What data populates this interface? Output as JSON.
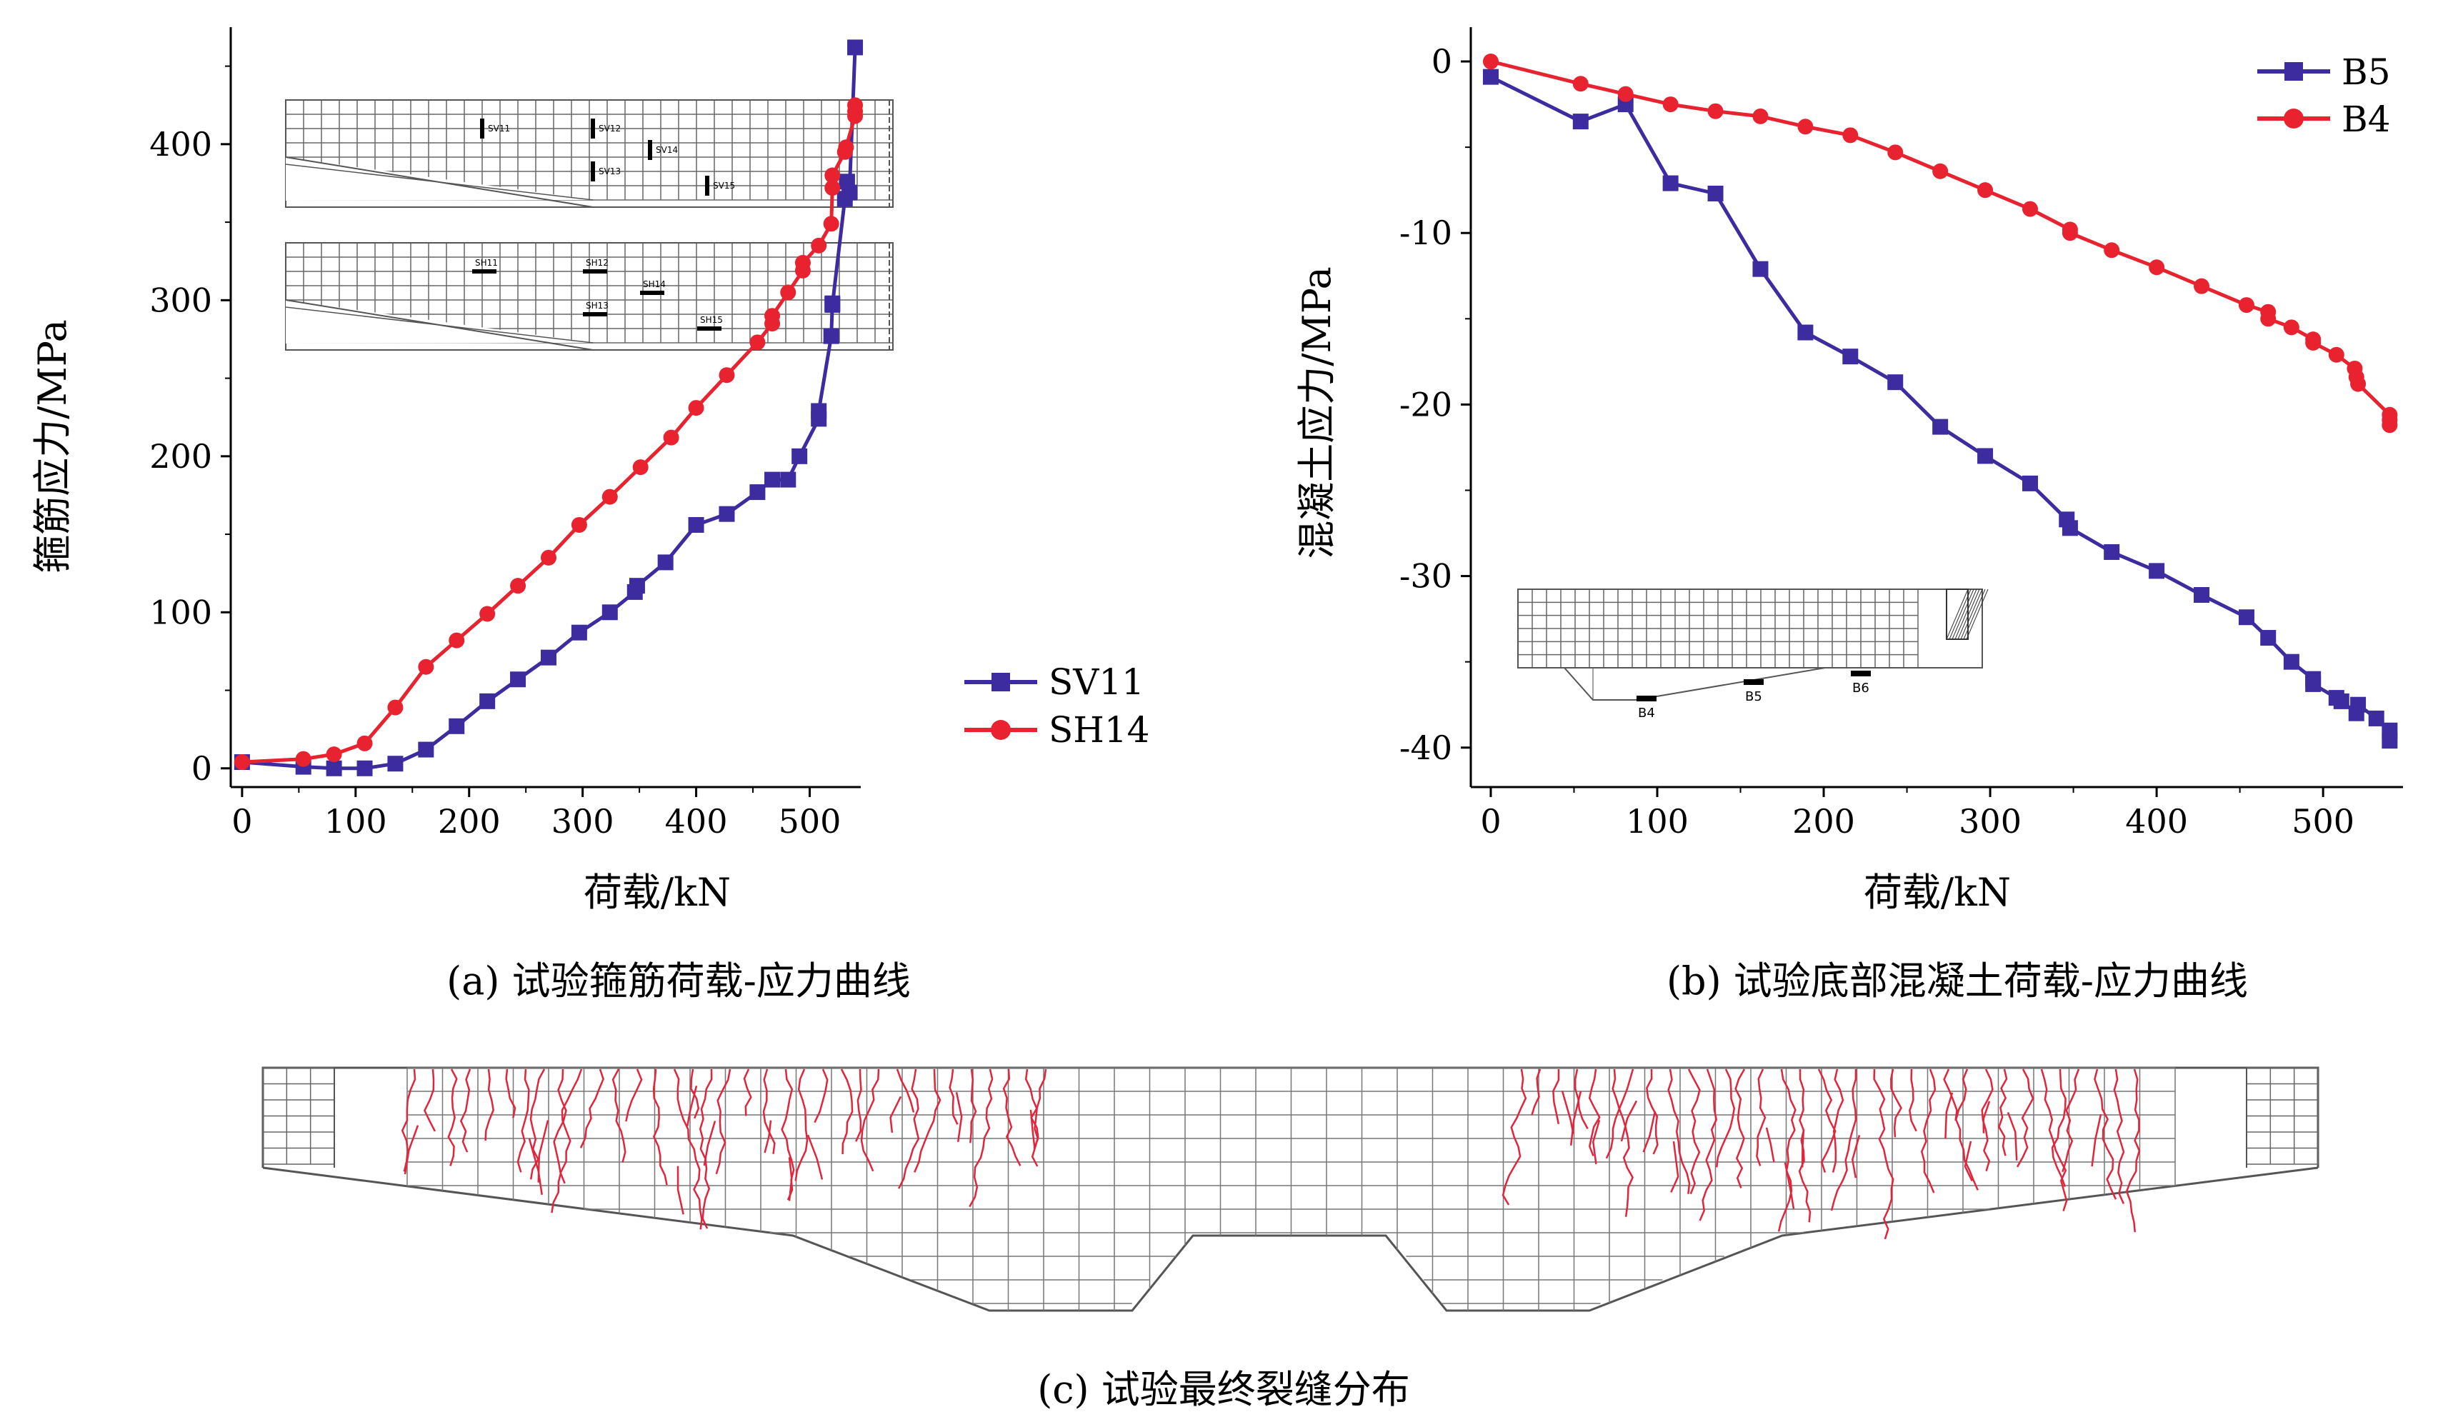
{
  "colors": {
    "series_purple": "#3d2ba0",
    "series_red": "#e8232f",
    "crack_red": "#e0253c",
    "mesh_gray": "#777777"
  },
  "captions": {
    "a": "(a) 试验箍筋荷载-应力曲线",
    "b": "(b) 试验底部混凝土荷载-应力曲线",
    "c": "(c) 试验最终裂缝分布"
  },
  "insets": {
    "sv_labels": [
      "SV11",
      "SV12",
      "SV13",
      "SV14",
      "SV15"
    ],
    "sh_labels": [
      "SH11",
      "SH12",
      "SH13",
      "SH14",
      "SH15"
    ],
    "b_labels": [
      "B4",
      "B5",
      "B6"
    ]
  },
  "chart_data": [
    {
      "type": "line",
      "xlabel": "荷载/kN",
      "ylabel": "箍筋应力/MPa",
      "xlim": [
        -10,
        545
      ],
      "ylim": [
        -12,
        475
      ],
      "xticks": [
        0,
        100,
        200,
        300,
        400,
        500
      ],
      "yticks": [
        0,
        100,
        200,
        300,
        400
      ],
      "legend_position": "bottom-right",
      "series": [
        {
          "name": "SV11",
          "color": "#3d2ba0",
          "marker": "square",
          "x": [
            0,
            54,
            81,
            108,
            135,
            162,
            189,
            216,
            243,
            270,
            297,
            324,
            346,
            348,
            373,
            400,
            427,
            454,
            467,
            481,
            491,
            508,
            508,
            519,
            520,
            520,
            531,
            533,
            535,
            540
          ],
          "y": [
            4,
            1,
            0,
            0,
            3,
            12,
            27,
            43,
            57,
            71,
            87,
            100,
            113,
            117,
            132,
            156,
            163,
            177,
            185,
            185,
            200,
            224,
            229,
            277,
            298,
            297,
            365,
            376,
            369,
            462
          ]
        },
        {
          "name": "SH14",
          "color": "#e8232f",
          "marker": "circle",
          "x": [
            0,
            54,
            81,
            108,
            135,
            162,
            189,
            216,
            243,
            270,
            297,
            324,
            351,
            378,
            400,
            427,
            454,
            467,
            467,
            481,
            494,
            494,
            508,
            519,
            520,
            520,
            531,
            532,
            540,
            540,
            540
          ],
          "y": [
            4,
            6,
            9,
            16,
            39,
            65,
            82,
            99,
            117,
            135,
            156,
            174,
            193,
            212,
            231,
            252,
            273,
            285,
            290,
            305,
            319,
            324,
            335,
            349,
            372,
            380,
            395,
            398,
            418,
            421,
            425
          ]
        }
      ]
    },
    {
      "type": "line",
      "xlabel": "荷载/kN",
      "ylabel": "混凝土应力/MPa",
      "xlim": [
        -12,
        548
      ],
      "ylim": [
        -42.3,
        2.0
      ],
      "xticks": [
        0,
        100,
        200,
        300,
        400,
        500
      ],
      "yticks": [
        0,
        -10,
        -20,
        -30,
        -40
      ],
      "legend_position": "top-right",
      "series": [
        {
          "name": "B5",
          "color": "#3d2ba0",
          "marker": "square",
          "x": [
            0,
            54,
            81,
            108,
            135,
            162,
            189,
            216,
            243,
            270,
            297,
            324,
            346,
            348,
            373,
            400,
            427,
            454,
            467,
            481,
            494,
            494,
            508,
            511,
            520,
            521,
            532,
            540,
            540
          ],
          "y": [
            -0.9,
            -3.5,
            -2.5,
            -7.1,
            -7.7,
            -12.1,
            -15.8,
            -17.2,
            -18.7,
            -21.3,
            -23.0,
            -24.6,
            -26.7,
            -27.2,
            -28.6,
            -29.7,
            -31.1,
            -32.4,
            -33.6,
            -35.0,
            -36.0,
            -36.3,
            -37.1,
            -37.3,
            -38.0,
            -37.5,
            -38.3,
            -39.0,
            -39.6
          ]
        },
        {
          "name": "B4",
          "color": "#e8232f",
          "marker": "circle",
          "x": [
            0,
            54,
            81,
            108,
            135,
            162,
            189,
            216,
            243,
            270,
            297,
            324,
            348,
            348,
            373,
            400,
            427,
            454,
            467,
            467,
            481,
            494,
            494,
            508,
            519,
            520,
            521,
            540,
            540,
            540
          ],
          "y": [
            0.0,
            -1.3,
            -1.9,
            -2.5,
            -2.9,
            -3.2,
            -3.8,
            -4.3,
            -5.3,
            -6.4,
            -7.5,
            -8.6,
            -9.8,
            -10.0,
            -11.0,
            -12.0,
            -13.1,
            -14.2,
            -14.6,
            -15.0,
            -15.5,
            -16.2,
            -16.4,
            -17.1,
            -17.9,
            -18.4,
            -18.8,
            -20.6,
            -20.9,
            -21.2
          ]
        }
      ]
    }
  ]
}
